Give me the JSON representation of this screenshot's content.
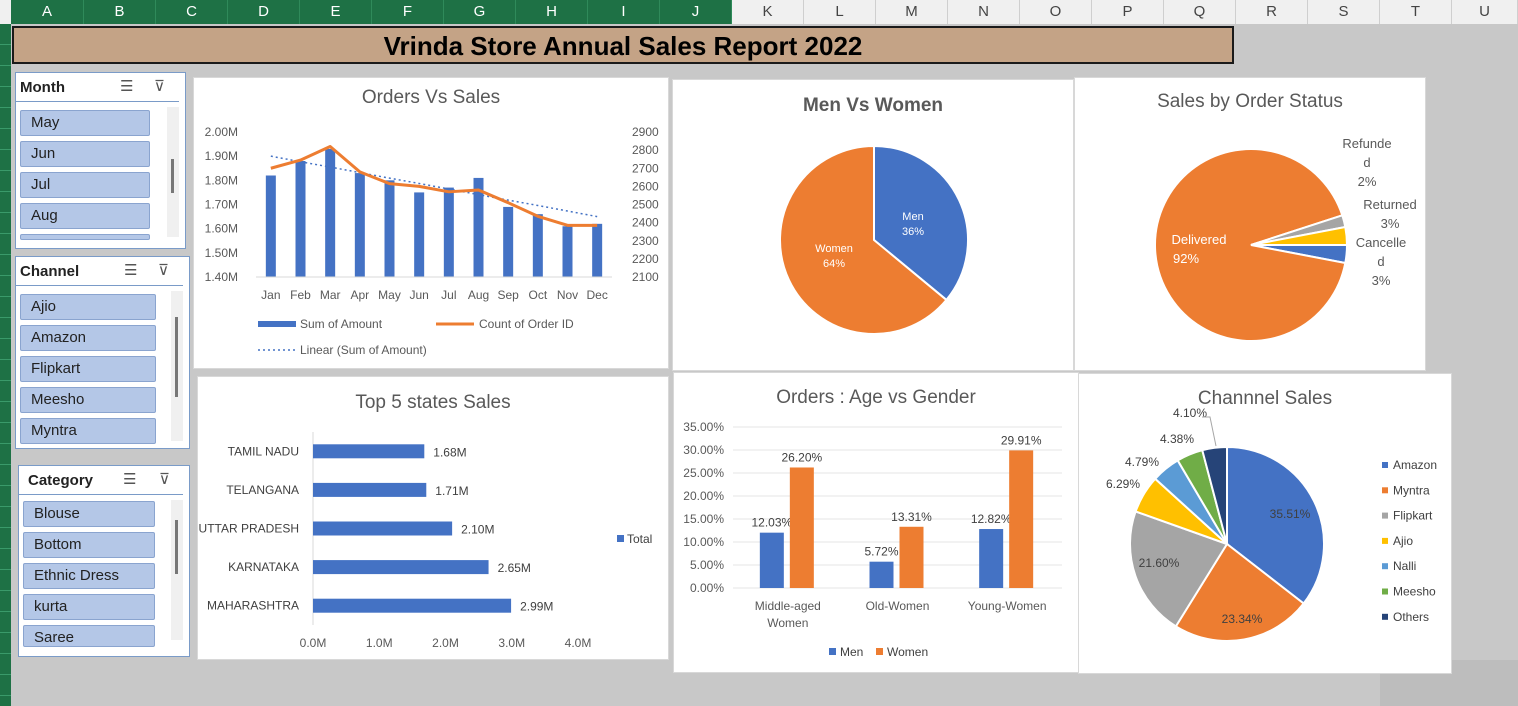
{
  "columns": [
    "A",
    "B",
    "C",
    "D",
    "E",
    "F",
    "G",
    "H",
    "I",
    "J",
    "K",
    "L",
    "M",
    "N",
    "O",
    "P",
    "Q",
    "R",
    "S",
    "T",
    "U"
  ],
  "report_title": "Vrinda Store Annual Sales Report 2022",
  "slicers": {
    "month": {
      "title": "Month",
      "items": [
        "May",
        "Jun",
        "Jul",
        "Aug"
      ]
    },
    "channel": {
      "title": "Channel",
      "items": [
        "Ajio",
        "Amazon",
        "Flipkart",
        "Meesho",
        "Myntra"
      ]
    },
    "category": {
      "title": "Category",
      "items": [
        "Blouse",
        "Bottom",
        "Ethnic Dress",
        "kurta",
        "Saree"
      ]
    }
  },
  "colors": {
    "blue": "#4472c4",
    "orange": "#ed7d31",
    "gray": "#a5a5a5",
    "yellow": "#ffc000",
    "lightblue": "#5b9bd5",
    "green": "#70ad47",
    "navy": "#264478"
  },
  "chart_data": [
    {
      "id": "orders_vs_sales",
      "type": "bar",
      "title": "Orders Vs Sales",
      "categories": [
        "Jan",
        "Feb",
        "Mar",
        "Apr",
        "May",
        "Jun",
        "Jul",
        "Aug",
        "Sep",
        "Oct",
        "Nov",
        "Dec"
      ],
      "series": [
        {
          "name": "Sum of Amount",
          "type": "bar",
          "axis": "left",
          "values": [
            1.82,
            1.88,
            1.93,
            1.83,
            1.8,
            1.75,
            1.77,
            1.81,
            1.69,
            1.66,
            1.61,
            1.62
          ]
        },
        {
          "name": "Count of Order ID",
          "type": "line",
          "axis": "right",
          "values": [
            2700,
            2745,
            2820,
            2680,
            2615,
            2600,
            2570,
            2580,
            2510,
            2435,
            2385,
            2385
          ]
        },
        {
          "name": "Linear (Sum of Amount)",
          "type": "trendline",
          "axis": "left",
          "values": [
            1.9,
            1.877,
            1.855,
            1.832,
            1.809,
            1.787,
            1.764,
            1.741,
            1.718,
            1.696,
            1.673,
            1.65
          ]
        }
      ],
      "y_left": {
        "min": 1.4,
        "max": 2.0,
        "ticks": [
          "1.40M",
          "1.50M",
          "1.60M",
          "1.70M",
          "1.80M",
          "1.90M",
          "2.00M"
        ]
      },
      "y_right": {
        "min": 2100,
        "max": 2900,
        "ticks": [
          "2100",
          "2200",
          "2300",
          "2400",
          "2500",
          "2600",
          "2700",
          "2800",
          "2900"
        ]
      }
    },
    {
      "id": "men_vs_women",
      "type": "pie",
      "title": "Men Vs Women",
      "slices": [
        {
          "label": "Men",
          "value": 36,
          "pct": "36%"
        },
        {
          "label": "Women",
          "value": 64,
          "pct": "64%"
        }
      ]
    },
    {
      "id": "order_status",
      "type": "pie",
      "title": "Sales by Order Status",
      "slices": [
        {
          "label": "Cancelled",
          "value": 3,
          "pct": "3%"
        },
        {
          "label": "Delivered",
          "value": 92,
          "pct": "92%"
        },
        {
          "label": "Refunded",
          "value": 2,
          "pct": "2%"
        },
        {
          "label": "Returned",
          "value": 3,
          "pct": "3%"
        }
      ]
    },
    {
      "id": "top_states",
      "type": "bar",
      "orientation": "horizontal",
      "title": "Top 5 states Sales",
      "categories": [
        "TAMIL NADU",
        "TELANGANA",
        "UTTAR PRADESH",
        "KARNATAKA",
        "MAHARASHTRA"
      ],
      "series": [
        {
          "name": "Total",
          "values": [
            1.68,
            1.71,
            2.1,
            2.65,
            2.99
          ],
          "labels": [
            "1.68M",
            "1.71M",
            "2.10M",
            "2.65M",
            "2.99M"
          ]
        }
      ],
      "xlim": [
        0,
        4
      ],
      "x_ticks": [
        "0.0M",
        "1.0M",
        "2.0M",
        "3.0M",
        "4.0M"
      ]
    },
    {
      "id": "age_vs_gender",
      "type": "bar",
      "title": "Orders : Age vs Gender",
      "categories": [
        "Middle-aged Women",
        "Old-Women",
        "Young-Women"
      ],
      "series": [
        {
          "name": "Men",
          "values": [
            12.03,
            5.72,
            12.82
          ],
          "labels": [
            "12.03%",
            "5.72%",
            "12.82%"
          ]
        },
        {
          "name": "Women",
          "values": [
            26.2,
            13.31,
            29.91
          ],
          "labels": [
            "26.20%",
            "13.31%",
            "29.91%"
          ]
        }
      ],
      "ylim": [
        0,
        35
      ],
      "y_ticks": [
        "0.00%",
        "5.00%",
        "10.00%",
        "15.00%",
        "20.00%",
        "25.00%",
        "30.00%",
        "35.00%"
      ]
    },
    {
      "id": "channel_sales",
      "type": "pie",
      "title": "Channnel Sales",
      "slices": [
        {
          "label": "Amazon",
          "value": 35.51,
          "pct": "35.51%"
        },
        {
          "label": "Myntra",
          "value": 23.34,
          "pct": "23.34%"
        },
        {
          "label": "Flipkart",
          "value": 21.6,
          "pct": "21.60%"
        },
        {
          "label": "Ajio",
          "value": 6.29,
          "pct": "6.29%"
        },
        {
          "label": "Nalli",
          "value": 4.79,
          "pct": "4.79%"
        },
        {
          "label": "Meesho",
          "value": 4.38,
          "pct": "4.38%"
        },
        {
          "label": "Others",
          "value": 4.1,
          "pct": "4.10%"
        }
      ]
    }
  ]
}
